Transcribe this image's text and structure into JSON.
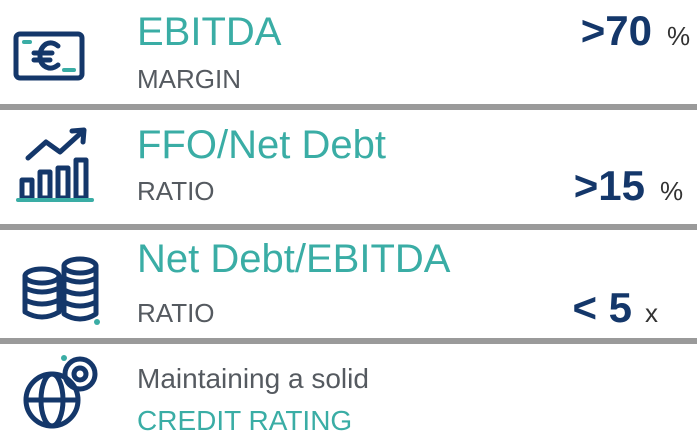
{
  "rows": [
    {
      "title": "EBITDA",
      "subtitle": "MARGIN",
      "value": ">70",
      "unit": "%"
    },
    {
      "title": "FFO/Net Debt",
      "subtitle": "RATIO",
      "value": ">15",
      "unit": "%"
    },
    {
      "title": "Net Debt/EBITDA",
      "subtitle": "RATIO",
      "value": "< 5",
      "unit": "x"
    }
  ],
  "footer": {
    "line1": "Maintaining a solid",
    "line2": "CREDIT RATING"
  }
}
